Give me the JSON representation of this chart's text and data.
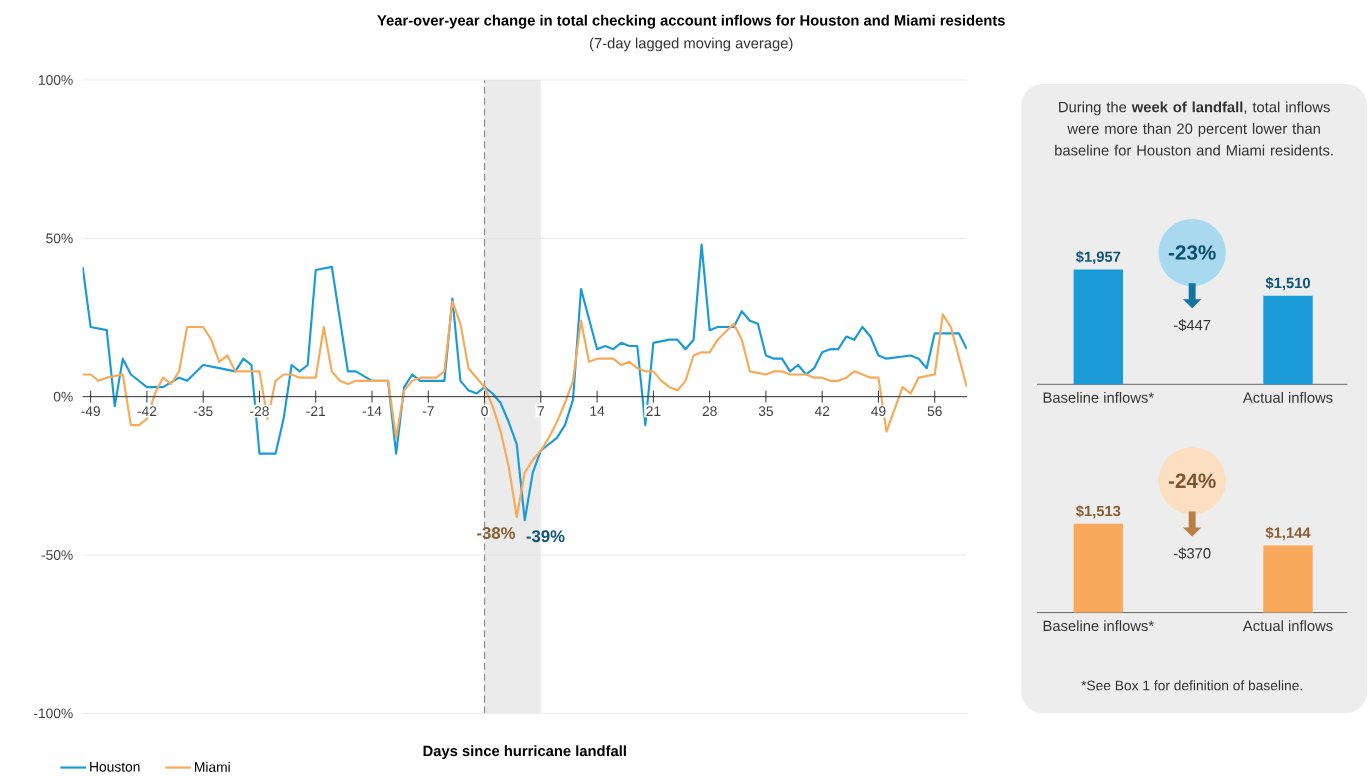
{
  "chart_data": [
    {
      "type": "line",
      "title": "Year-over-year change in total checking account inflows for Houston and Miami residents",
      "subtitle": "(7-day lagged moving average)",
      "xlabel": "Days since hurricane landfall",
      "xlim": [
        -50,
        60
      ],
      "ylim": [
        -100,
        100
      ],
      "xticks": [
        -49,
        -42,
        -35,
        -28,
        -21,
        -14,
        -7,
        0,
        7,
        14,
        21,
        28,
        35,
        42,
        49,
        56
      ],
      "yticks": [
        {
          "value": -100,
          "label": "-100%"
        },
        {
          "value": -50,
          "label": "-50%"
        },
        {
          "value": 0,
          "label": "0%"
        },
        {
          "value": 50,
          "label": "50%"
        },
        {
          "value": 100,
          "label": "100%"
        }
      ],
      "grid": "y",
      "legend": "bottom left",
      "bands": [
        {
          "axis": "x",
          "from": 0,
          "to": 7,
          "color": "#ebebeb"
        }
      ],
      "ref_lines": [
        {
          "axis": "x",
          "value": 0,
          "color": "#8c8c8c",
          "line_style": "dashed"
        }
      ],
      "annotations": [
        {
          "text": "-38%",
          "x": 4,
          "y": -38
        },
        {
          "text": "-39%",
          "x": 5,
          "y": -39
        }
      ],
      "series": [
        {
          "name": "Houston",
          "color": "#1a9bd7",
          "x": [
            -50,
            -49,
            -47,
            -46,
            -45,
            -44,
            -42,
            -40,
            -38,
            -37,
            -35,
            -33,
            -31,
            -30,
            -29,
            -28,
            -26,
            -25,
            -24,
            -23,
            -22,
            -21,
            -19,
            -17,
            -16,
            -14,
            -12,
            -11,
            -10,
            -9,
            -8,
            -6,
            -5,
            -4,
            -3,
            -2,
            -1,
            0,
            1,
            2,
            3,
            4,
            5,
            6,
            7,
            8,
            9,
            10,
            11,
            12,
            14,
            15,
            16,
            17,
            18,
            19,
            20,
            21,
            23,
            24,
            25,
            26,
            27,
            28,
            29,
            31,
            32,
            33,
            34,
            35,
            36,
            37,
            38,
            39,
            40,
            41,
            42,
            43,
            44,
            45,
            46,
            47,
            48,
            49,
            50,
            53,
            54,
            55,
            56,
            58,
            59,
            60
          ],
          "values": [
            41,
            22,
            21,
            -3,
            12,
            7,
            3,
            3,
            6,
            5,
            10,
            9,
            8,
            12,
            10,
            -18,
            -18,
            -7,
            10,
            8,
            10,
            40,
            41,
            8,
            8,
            5,
            5,
            -18,
            3,
            7,
            5,
            5,
            5,
            31,
            5,
            2,
            1,
            3,
            1,
            -2,
            -8,
            -15,
            -39,
            -24,
            -17,
            -15,
            -13,
            -9,
            -1,
            34,
            15,
            16,
            15,
            17,
            16,
            16,
            -9,
            17,
            18,
            18,
            15,
            18,
            48,
            21,
            22,
            22,
            27,
            24,
            23,
            13,
            12,
            12,
            8,
            10,
            7,
            9,
            14,
            15,
            15,
            19,
            18,
            22,
            19,
            13,
            12,
            13,
            12,
            9,
            20,
            20,
            20,
            15
          ]
        },
        {
          "name": "Miami",
          "color": "#f8a95a",
          "x": [
            -50,
            -49,
            -48,
            -47,
            -45,
            -44,
            -43,
            -42,
            -41,
            -40,
            -39,
            -38,
            -37,
            -35,
            -34,
            -33,
            -32,
            -31,
            -30,
            -28,
            -27,
            -26,
            -25,
            -24,
            -23,
            -21,
            -20,
            -19,
            -18,
            -17,
            -16,
            -14,
            -13,
            -12,
            -11,
            -10,
            -9,
            -8,
            -6,
            -5,
            -4,
            -3,
            -2,
            -1,
            0,
            1,
            2,
            3,
            4,
            5,
            6,
            7,
            8,
            9,
            10,
            11,
            12,
            13,
            14,
            16,
            17,
            18,
            19,
            20,
            21,
            22,
            23,
            24,
            25,
            26,
            27,
            28,
            29,
            31,
            32,
            33,
            35,
            36,
            37,
            38,
            40,
            41,
            42,
            43,
            44,
            45,
            46,
            47,
            48,
            49,
            50,
            52,
            53,
            54,
            56,
            57,
            58,
            60
          ],
          "values": [
            7,
            7,
            5,
            6,
            7,
            -9,
            -9,
            -7,
            1,
            6,
            4,
            8,
            22,
            22,
            18,
            11,
            13,
            8,
            8,
            8,
            -7,
            5,
            7,
            7,
            6,
            6,
            22,
            8,
            5,
            4,
            5,
            5,
            5,
            5,
            -13,
            2,
            5,
            6,
            6,
            8,
            30,
            23,
            9,
            6,
            3,
            -3,
            -11,
            -22,
            -38,
            -24,
            -20,
            -17,
            -13,
            -8,
            -2,
            5,
            24,
            11,
            12,
            12,
            10,
            11,
            9,
            8,
            8,
            5,
            3,
            2,
            5,
            13,
            14,
            14,
            18,
            23,
            18,
            8,
            7,
            8,
            8,
            7,
            7,
            6,
            6,
            5,
            5,
            6,
            8,
            7,
            6,
            6,
            -11,
            3,
            1,
            6,
            7,
            26,
            22,
            3
          ]
        }
      ]
    },
    {
      "type": "bar",
      "title": "During the **week of landfall**, total inflows were more than 20 percent lower than baseline for Houston and Miami residents.",
      "categories": [
        "Baseline inflows*",
        "Actual inflows"
      ],
      "values": [
        1957,
        1510
      ],
      "value_labels": [
        "$1,957",
        "$1,510"
      ],
      "color": "#1a9bd7",
      "annotations": [
        "-23%",
        "-$447"
      ]
    },
    {
      "type": "bar",
      "categories": [
        "Baseline inflows*",
        "Actual inflows"
      ],
      "values": [
        1513,
        1144
      ],
      "value_labels": [
        "$1,513",
        "$1,144"
      ],
      "color": "#f8a95a",
      "annotations": [
        "-24%",
        "-$370",
        "*See Box 1 for definition of baseline."
      ]
    }
  ]
}
